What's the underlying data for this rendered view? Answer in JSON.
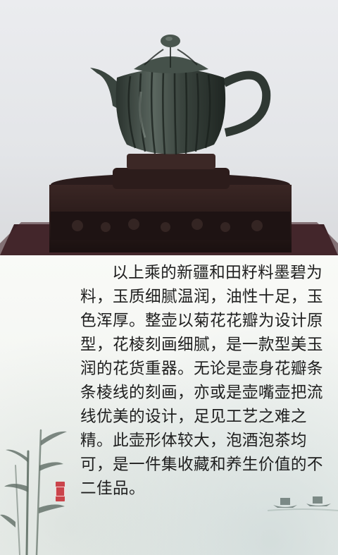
{
  "article": {
    "text": "以上乘的新疆和田籽料墨碧为料，玉质细腻温润，油性十足，玉色浑厚。整壶以菊花花瓣为设计原型，花棱刻画细腻，是一款型美玉润的花货重器。无论是壶身花瓣条条棱线的刻画，亦或是壶嘴壶把流线优美的设计，足见工艺之难之精。此壶形体较大，泡酒泡茶均可，是一件集收藏和养生价值的不二佳品。"
  },
  "colors": {
    "jade": "#3f4a44",
    "stand": "#2a1d1c",
    "seal": "#c8323a",
    "text": "#1e1e1e"
  },
  "images": {
    "main_photo": "jade-teapot-on-wooden-stand",
    "decoration": "ink-bamboo-and-boats-painting"
  }
}
